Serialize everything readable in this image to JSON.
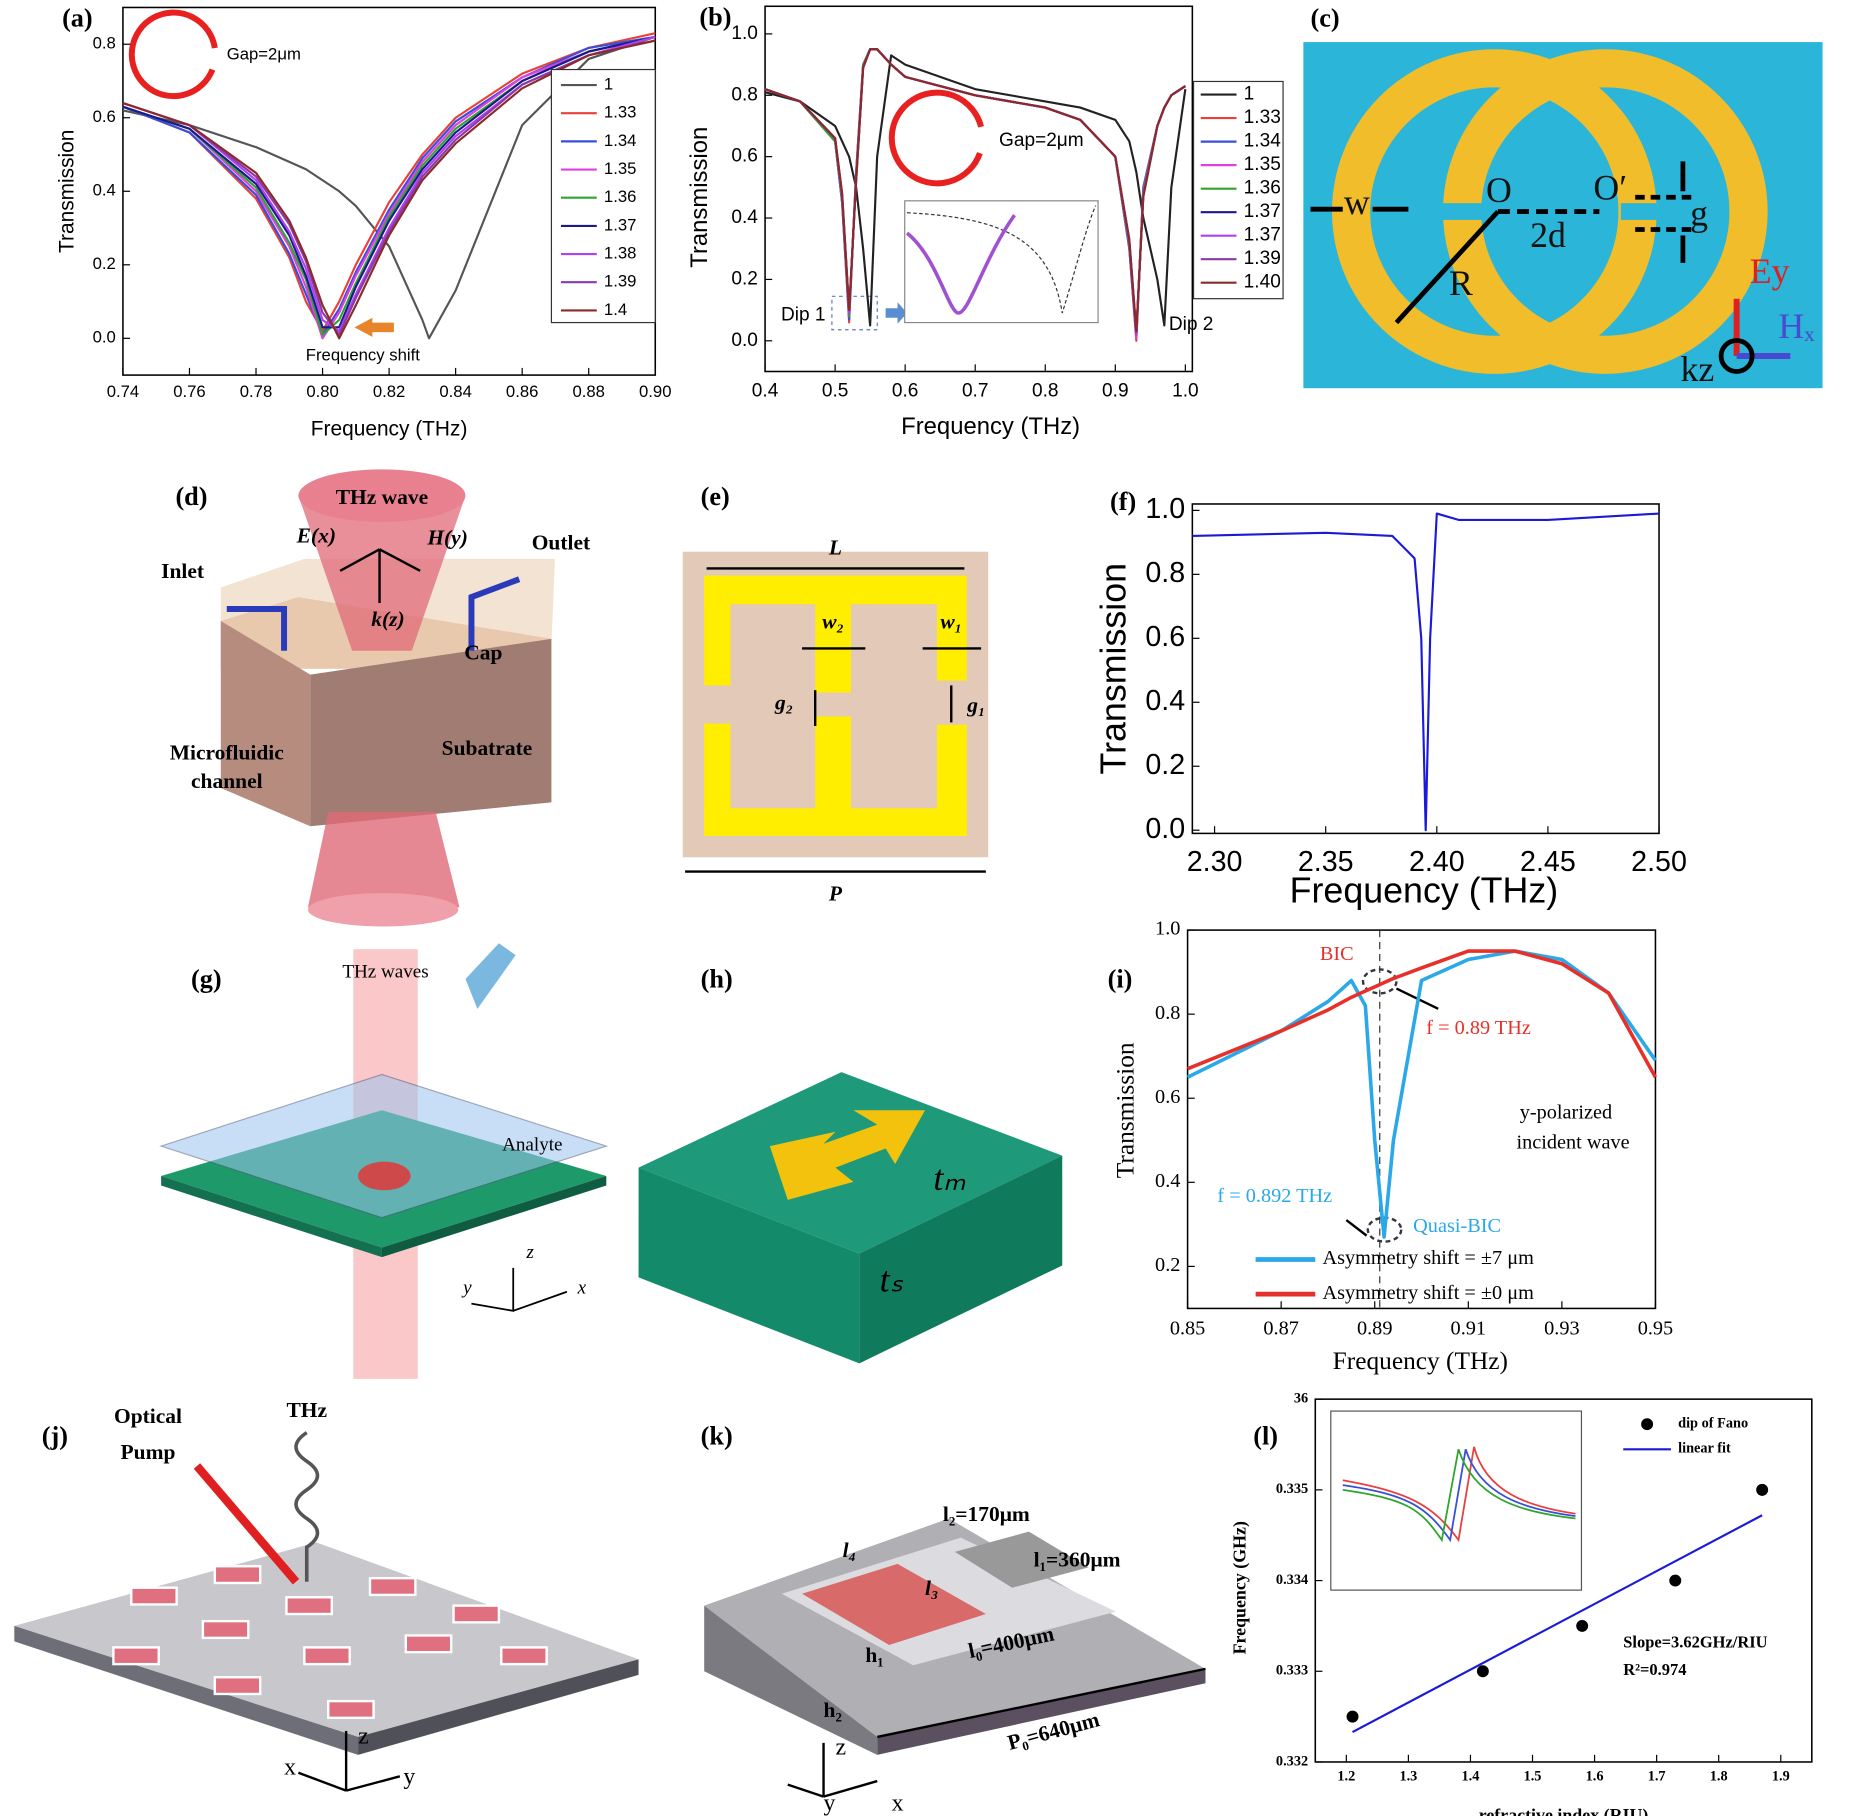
{
  "chart_data": [
    {
      "type": "line",
      "panel": "(a)",
      "xlabel": "Frequency (THz)",
      "ylabel": "Transmission",
      "xlim": [
        0.74,
        0.9
      ],
      "ylim": [
        -0.1,
        0.9
      ],
      "xticks": [
        0.74,
        0.76,
        0.78,
        {
          "value": 0.8,
          "label": "0.80"
        },
        0.82,
        0.84,
        0.86,
        0.88,
        {
          "value": 0.9,
          "label": "0.90"
        }
      ],
      "yticks": [
        {
          "value": 0,
          "label": "0.0"
        },
        0.2,
        0.4,
        0.6,
        0.8
      ],
      "annotations": [
        {
          "text": "Gap=2μm",
          "color": "#000000"
        },
        {
          "text": "Frequency shift",
          "color": "#000000"
        }
      ],
      "x": [
        0.74,
        0.76,
        0.78,
        0.79,
        0.795,
        0.8,
        0.805,
        0.81,
        0.82,
        0.83,
        0.832,
        0.84,
        0.86,
        0.88,
        0.9
      ],
      "series": [
        {
          "name": "1",
          "color": "#555555",
          "values": [
            0.62,
            0.58,
            0.52,
            0.48,
            0.46,
            0.43,
            0.4,
            0.36,
            0.25,
            0.05,
            0.0,
            0.13,
            0.58,
            0.76,
            0.82
          ]
        },
        {
          "name": "1.33",
          "color": "#e8403a",
          "values": [
            0.63,
            0.56,
            0.38,
            0.22,
            0.1,
            0.02,
            0.1,
            0.2,
            0.37,
            0.5,
            0.52,
            0.6,
            0.72,
            0.79,
            0.83
          ]
        },
        {
          "name": "1.34",
          "color": "#3a4fd8",
          "values": [
            0.63,
            0.56,
            0.39,
            0.23,
            0.12,
            0.01,
            0.08,
            0.18,
            0.35,
            0.49,
            0.51,
            0.59,
            0.71,
            0.79,
            0.82
          ]
        },
        {
          "name": "1.35",
          "color": "#e040e0",
          "values": [
            0.63,
            0.57,
            0.4,
            0.25,
            0.14,
            0.0,
            0.07,
            0.17,
            0.34,
            0.48,
            0.5,
            0.58,
            0.71,
            0.78,
            0.82
          ]
        },
        {
          "name": "1.36",
          "color": "#2ea52e",
          "values": [
            0.63,
            0.57,
            0.41,
            0.26,
            0.16,
            0.01,
            0.05,
            0.15,
            0.33,
            0.47,
            0.49,
            0.57,
            0.7,
            0.78,
            0.82
          ]
        },
        {
          "name": "1.37",
          "color": "#1a1a8c",
          "values": [
            0.63,
            0.57,
            0.42,
            0.28,
            0.17,
            0.03,
            0.03,
            0.14,
            0.32,
            0.46,
            0.48,
            0.56,
            0.7,
            0.78,
            0.82
          ]
        },
        {
          "name": "1.38",
          "color": "#b040f0",
          "values": [
            0.64,
            0.58,
            0.43,
            0.29,
            0.19,
            0.05,
            0.02,
            0.12,
            0.3,
            0.45,
            0.47,
            0.55,
            0.69,
            0.77,
            0.82
          ]
        },
        {
          "name": "1.39",
          "color": "#8a3aa8",
          "values": [
            0.64,
            0.58,
            0.44,
            0.31,
            0.21,
            0.07,
            0.01,
            0.11,
            0.29,
            0.44,
            0.46,
            0.54,
            0.69,
            0.77,
            0.81
          ]
        },
        {
          "name": "1.4",
          "color": "#8c2a2a",
          "values": [
            0.64,
            0.58,
            0.45,
            0.32,
            0.22,
            0.09,
            0.0,
            0.09,
            0.28,
            0.43,
            0.45,
            0.53,
            0.68,
            0.77,
            0.81
          ]
        }
      ]
    },
    {
      "type": "line",
      "panel": "(b)",
      "xlabel": "Frequency (THz)",
      "ylabel": "Transmission",
      "xlim": [
        0.4,
        1.01
      ],
      "ylim": [
        -0.1,
        1.09
      ],
      "xticks": [
        0.4,
        0.5,
        0.6,
        0.7,
        0.8,
        0.9,
        {
          "value": 1,
          "label": "1.0"
        }
      ],
      "yticks": [
        {
          "value": 0,
          "label": "0.0"
        },
        0.2,
        0.4,
        0.6,
        0.8,
        {
          "value": 1,
          "label": "1.0"
        }
      ],
      "annotations": [
        {
          "text": "Dip 1",
          "color": "#000000"
        },
        {
          "text": "Dip 2",
          "color": "#000000"
        },
        {
          "text": "Gap=2μm",
          "color": "#000000"
        }
      ],
      "x": [
        0.4,
        0.45,
        0.5,
        0.51,
        0.52,
        0.53,
        0.54,
        0.55,
        0.56,
        0.58,
        0.6,
        0.7,
        0.8,
        0.85,
        0.9,
        0.92,
        0.93,
        0.94,
        0.96,
        0.97,
        0.98,
        1.0
      ],
      "series": [
        {
          "name": "1",
          "color": "#222222",
          "values": [
            0.81,
            0.78,
            0.7,
            0.65,
            0.6,
            0.5,
            0.3,
            0.05,
            0.6,
            0.93,
            0.9,
            0.82,
            0.78,
            0.76,
            0.72,
            0.65,
            0.55,
            0.4,
            0.2,
            0.05,
            0.5,
            0.82
          ]
        },
        {
          "name": "1.33",
          "color": "#e8403a",
          "values": [
            0.82,
            0.78,
            0.65,
            0.45,
            0.06,
            0.55,
            0.9,
            0.95,
            0.95,
            0.9,
            0.86,
            0.8,
            0.76,
            0.72,
            0.6,
            0.3,
            0.0,
            0.5,
            0.7,
            0.76,
            0.8,
            0.83
          ]
        },
        {
          "name": "1.34",
          "color": "#3a4fd8",
          "values": [
            0.82,
            0.78,
            0.65,
            0.45,
            0.07,
            0.55,
            0.9,
            0.95,
            0.95,
            0.9,
            0.86,
            0.8,
            0.76,
            0.72,
            0.6,
            0.3,
            0.01,
            0.5,
            0.7,
            0.76,
            0.8,
            0.83
          ]
        },
        {
          "name": "1.35",
          "color": "#e040e0",
          "values": [
            0.82,
            0.78,
            0.65,
            0.46,
            0.08,
            0.54,
            0.9,
            0.95,
            0.95,
            0.9,
            0.86,
            0.8,
            0.76,
            0.72,
            0.6,
            0.31,
            0.01,
            0.49,
            0.7,
            0.76,
            0.8,
            0.83
          ]
        },
        {
          "name": "1.36",
          "color": "#2ea52e",
          "values": [
            0.82,
            0.78,
            0.65,
            0.46,
            0.08,
            0.54,
            0.9,
            0.95,
            0.95,
            0.9,
            0.86,
            0.8,
            0.76,
            0.72,
            0.6,
            0.31,
            0.02,
            0.49,
            0.7,
            0.76,
            0.8,
            0.83
          ]
        },
        {
          "name": "1.37",
          "color": "#1a1a8c",
          "values": [
            0.82,
            0.78,
            0.66,
            0.47,
            0.09,
            0.53,
            0.89,
            0.95,
            0.95,
            0.9,
            0.86,
            0.8,
            0.76,
            0.72,
            0.6,
            0.32,
            0.02,
            0.48,
            0.7,
            0.76,
            0.8,
            0.83
          ]
        },
        {
          "name": "1.37",
          "color": "#b040f0",
          "values": [
            0.82,
            0.78,
            0.66,
            0.47,
            0.09,
            0.53,
            0.89,
            0.95,
            0.95,
            0.9,
            0.86,
            0.8,
            0.76,
            0.72,
            0.6,
            0.32,
            0.02,
            0.48,
            0.7,
            0.76,
            0.8,
            0.83
          ]
        },
        {
          "name": "1.39",
          "color": "#8a3aa8",
          "values": [
            0.82,
            0.78,
            0.66,
            0.48,
            0.1,
            0.52,
            0.89,
            0.95,
            0.95,
            0.9,
            0.86,
            0.8,
            0.76,
            0.72,
            0.6,
            0.33,
            0.03,
            0.47,
            0.7,
            0.76,
            0.8,
            0.83
          ]
        },
        {
          "name": "1.40",
          "color": "#8c2a2a",
          "values": [
            0.82,
            0.78,
            0.66,
            0.48,
            0.1,
            0.52,
            0.89,
            0.95,
            0.95,
            0.9,
            0.86,
            0.8,
            0.76,
            0.72,
            0.6,
            0.33,
            0.03,
            0.47,
            0.7,
            0.76,
            0.8,
            0.83
          ]
        }
      ]
    },
    {
      "type": "line",
      "panel": "(f)",
      "xlabel": "Frequency (THz)",
      "ylabel": "Transmission",
      "xlim": [
        2.29,
        2.5
      ],
      "ylim": [
        -0.01,
        1.02
      ],
      "xticks": [
        {
          "value": 2.3,
          "label": "2.30"
        },
        2.35,
        {
          "value": 2.4,
          "label": "2.40"
        },
        2.45,
        {
          "value": 2.5,
          "label": "2.50"
        }
      ],
      "yticks": [
        {
          "value": 0,
          "label": "0.0"
        },
        0.2,
        0.4,
        0.6,
        0.8,
        {
          "value": 1,
          "label": "1.0"
        }
      ],
      "annotations": [],
      "x": [
        2.29,
        2.35,
        2.38,
        2.39,
        2.393,
        2.395,
        2.397,
        2.4,
        2.41,
        2.45,
        2.5
      ],
      "series": [
        {
          "color": "#1a1ad8",
          "values": [
            0.92,
            0.93,
            0.92,
            0.85,
            0.6,
            0.0,
            0.6,
            0.99,
            0.97,
            0.97,
            0.99
          ]
        }
      ]
    },
    {
      "type": "line",
      "panel": "(i)",
      "xlabel": "Frequency (THz)",
      "ylabel": "Transmission",
      "xlim": [
        0.85,
        0.95
      ],
      "ylim": [
        0.1,
        1.0
      ],
      "xticks": [
        0.85,
        0.87,
        0.89,
        0.91,
        0.93,
        0.95
      ],
      "yticks": [
        0.2,
        0.4,
        0.6,
        0.8,
        {
          "value": 1,
          "label": "1.0"
        }
      ],
      "annotations": [
        {
          "text": "BIC",
          "color": "#e8302a"
        },
        {
          "text": "f = 0.89 THz",
          "color": "#e8302a"
        },
        {
          "text": "y-polarized",
          "color": "#000000"
        },
        {
          "text": "incident wave",
          "color": "#000000"
        },
        {
          "text": "f = 0.892 THz",
          "color": "#2aa8e8"
        },
        {
          "text": "Quasi-BIC",
          "color": "#2aa8e8"
        }
      ],
      "x": [
        0.85,
        0.87,
        0.88,
        0.885,
        0.888,
        0.89,
        0.892,
        0.894,
        0.9,
        0.91,
        0.92,
        0.93,
        0.94,
        0.95
      ],
      "series": [
        {
          "name": "Asymmetry shift = ±7 μm",
          "color": "#2aa8e8",
          "values": [
            0.65,
            0.76,
            0.83,
            0.88,
            0.82,
            0.5,
            0.27,
            0.5,
            0.88,
            0.93,
            0.95,
            0.93,
            0.85,
            0.69
          ]
        },
        {
          "name": "Asymmetry shift = ±0 μm",
          "color": "#e8302a",
          "values": [
            0.67,
            0.76,
            0.81,
            0.84,
            0.855,
            0.865,
            0.875,
            0.885,
            0.91,
            0.95,
            0.95,
            0.92,
            0.85,
            0.65
          ]
        }
      ]
    },
    {
      "type": "scatter",
      "panel": "(l)",
      "xlabel": "refractive index (RIU)",
      "ylabel": "Frequency (GHz)",
      "xlim": [
        1.15,
        1.95
      ],
      "ylim": [
        0.332,
        0.336
      ],
      "xticks": [
        1.2,
        1.3,
        1.4,
        1.5,
        1.6,
        1.7,
        1.8,
        1.9
      ],
      "yticks": [
        0.332,
        0.333,
        0.334,
        0.335,
        {
          "value": 0.336,
          "label": "36"
        }
      ],
      "annotations": [
        {
          "text": "Slope=3.62GHz/RIU",
          "color": "#000000"
        },
        {
          "text": "R²=0.974",
          "color": "#000000"
        }
      ],
      "series": [
        {
          "name": "dip of Fano",
          "color": "#000000",
          "style": "markers",
          "x": [
            1.21,
            1.42,
            1.58,
            1.73,
            1.87
          ],
          "values": [
            0.3325,
            0.333,
            0.3335,
            0.334,
            0.335
          ]
        },
        {
          "name": "linear fit",
          "color": "#1a1ad8",
          "style": "line",
          "x": [
            1.21,
            1.87
          ],
          "values": [
            0.33233,
            0.33472
          ]
        }
      ]
    }
  ],
  "diagrams": {
    "c": {
      "label": "(c)",
      "texts": [
        "w",
        "O",
        "O′",
        "2d",
        "g",
        "R",
        "Ey",
        "Hₓ",
        "kz"
      ]
    },
    "d": {
      "label": "(d)",
      "texts": [
        "THz wave",
        "E(x)",
        "H(y)",
        "k(z)",
        "Inlet",
        "Outlet",
        "Cap",
        "Microfluidic",
        "channel",
        "Subatrate"
      ]
    },
    "e": {
      "label": "(e)",
      "texts": [
        "L",
        "w₂",
        "w₁",
        "g₂",
        "g₁",
        "P"
      ]
    },
    "g": {
      "label": "(g)",
      "texts": [
        "THz waves",
        "Analyte",
        "z",
        "y",
        "x"
      ]
    },
    "h": {
      "label": "(h)",
      "texts": [
        "tₘ",
        "tₛ"
      ]
    },
    "j": {
      "label": "(j)",
      "texts": [
        "Optical",
        "Pump",
        "THz",
        "z",
        "x",
        "y"
      ]
    },
    "k": {
      "label": "(k)",
      "texts": [
        "l₂=170μm",
        "l₁=360μm",
        "l₄",
        "l₃",
        "h₁",
        "l₀=400μm",
        "h₂",
        "P₀=640μm",
        "z",
        "y",
        "x"
      ]
    }
  }
}
